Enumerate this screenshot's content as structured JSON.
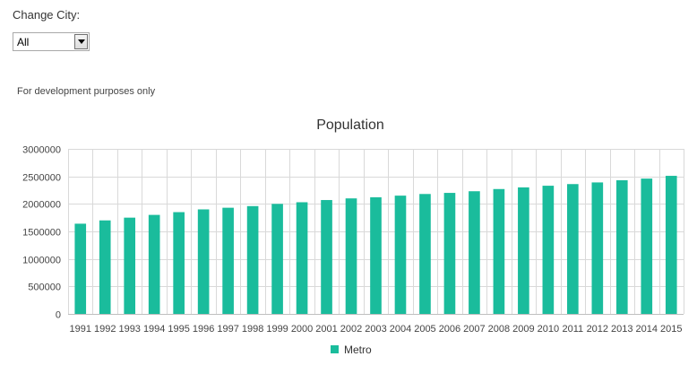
{
  "controls": {
    "city_label": "Change City:",
    "city_selected": "All"
  },
  "note": "For development purposes only",
  "chart_data": {
    "type": "bar",
    "title": "Population",
    "categories": [
      "1991",
      "1992",
      "1993",
      "1994",
      "1995",
      "1996",
      "1997",
      "1998",
      "1999",
      "2000",
      "2001",
      "2002",
      "2003",
      "2004",
      "2005",
      "2006",
      "2007",
      "2008",
      "2009",
      "2010",
      "2011",
      "2012",
      "2013",
      "2014",
      "2015"
    ],
    "series": [
      {
        "name": "Metro",
        "color": "#1abc9c",
        "values": [
          1640000,
          1700000,
          1750000,
          1800000,
          1850000,
          1900000,
          1930000,
          1960000,
          2000000,
          2030000,
          2070000,
          2100000,
          2120000,
          2150000,
          2180000,
          2200000,
          2230000,
          2270000,
          2300000,
          2330000,
          2360000,
          2390000,
          2430000,
          2460000,
          2510000
        ]
      }
    ],
    "yticks": [
      0,
      500000,
      1000000,
      1500000,
      2000000,
      2500000,
      3000000
    ],
    "ylim": [
      0,
      3000000
    ],
    "grid": true,
    "legend_position": "bottom-center"
  }
}
